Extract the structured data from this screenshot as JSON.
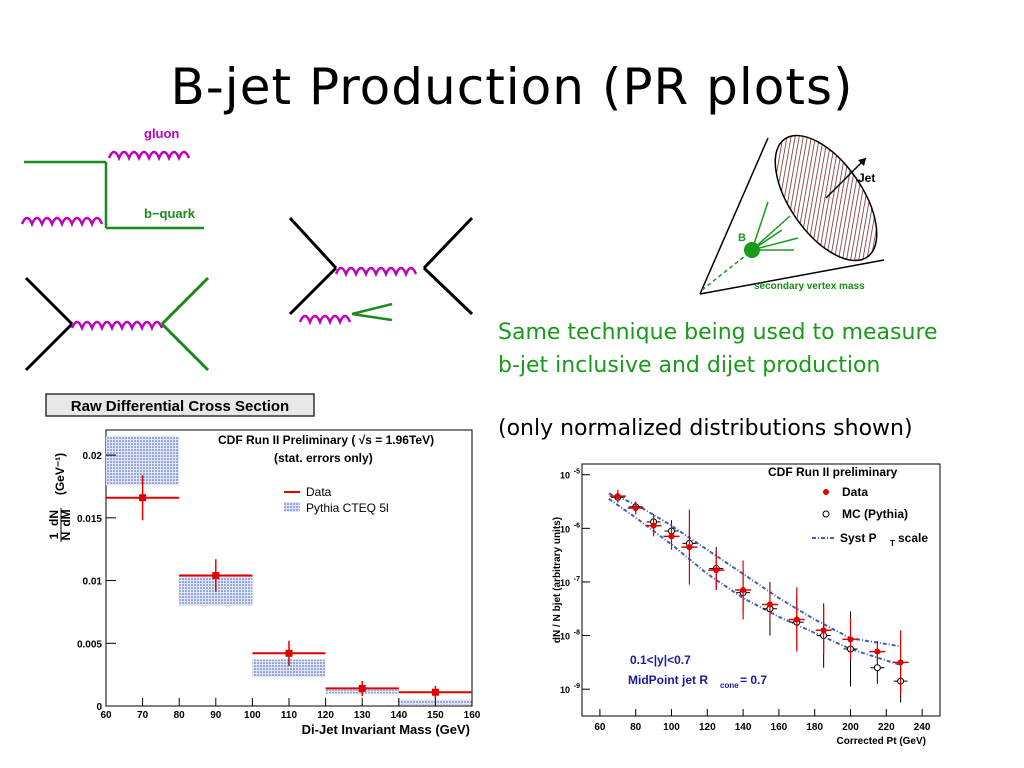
{
  "slide": {
    "title": "B-jet  Production (PR plots)",
    "caption_lines": [
      "Same technique being used to measure",
      "b-jet inclusive and dijet production"
    ],
    "caption_note": "(only normalized distributions shown)"
  },
  "diagrams": {
    "gluon_label": "gluon",
    "bquark_label": "b−quark",
    "cone": {
      "jet_label": "Jet",
      "b_label": "B",
      "sv_label": "secondary vertex mass"
    }
  },
  "colors": {
    "data_red": "#e00000",
    "mc_blue": "#4060c0",
    "green": "#1a8a1a",
    "magenta": "#c000c0"
  },
  "chart_data": [
    {
      "type": "bar",
      "title": "Raw Differential Cross Section",
      "annotation_lines": [
        "CDF Run II Preliminary ( √s = 1.96TeV)",
        "(stat. errors only)"
      ],
      "xlabel": "Di-Jet Invariant Mass (GeV)",
      "ylabel": "(GeV⁻¹)",
      "ylabel_fraction": {
        "num1": "1",
        "den1": "N",
        "num2": "dN",
        "den2": "dM"
      },
      "xlim": [
        60,
        160
      ],
      "ylim": [
        0,
        0.022
      ],
      "xticks": [
        60,
        70,
        80,
        90,
        100,
        110,
        120,
        130,
        140,
        150,
        160
      ],
      "yticks": [
        0,
        0.005,
        0.01,
        0.015,
        0.02
      ],
      "ytick_labels": [
        "0",
        "0.005",
        "0.01",
        "0.015",
        "0.02"
      ],
      "legend": [
        "Data",
        "Pythia CTEQ 5l"
      ],
      "legend_position": "top-right",
      "bins": [
        [
          60,
          80
        ],
        [
          80,
          100
        ],
        [
          100,
          120
        ],
        [
          120,
          140
        ],
        [
          140,
          160
        ]
      ],
      "series": [
        {
          "name": "Data",
          "x": [
            70,
            90,
            110,
            130,
            150
          ],
          "values": [
            0.0166,
            0.0104,
            0.0042,
            0.0014,
            0.0011
          ],
          "err": [
            0.0018,
            0.0013,
            0.001,
            0.0006,
            0.0005
          ]
        },
        {
          "name": "Pythia CTEQ 5l",
          "band_low": [
            0.0176,
            0.008,
            0.0023,
            0.001,
            0.0001
          ],
          "band_high": [
            0.0215,
            0.0105,
            0.0037,
            0.0013,
            0.0005
          ]
        }
      ]
    },
    {
      "type": "scatter",
      "title": "CDF Run II preliminary",
      "xlabel": "Corrected Pt (GeV)",
      "ylabel": "dN / N bjet (arbitrary units)",
      "xlim": [
        50,
        250
      ],
      "ylim_log10": [
        -9.5,
        -4.8
      ],
      "log_y": true,
      "xticks": [
        60,
        80,
        100,
        120,
        140,
        160,
        180,
        200,
        220,
        240
      ],
      "yticks_exp": [
        -5,
        -6,
        -7,
        -8,
        -9
      ],
      "legend": [
        "Data",
        "MC (Pythia)",
        "Syst P",
        "T",
        "scale"
      ],
      "legend_position": "top-right",
      "annotation_lines": [
        "0.1<|y|<0.7",
        "MidPoint jet R",
        "cone",
        " = 0.7"
      ],
      "series": [
        {
          "name": "Data",
          "x": [
            70,
            80,
            90,
            100,
            110,
            125,
            140,
            155,
            170,
            185,
            200,
            215,
            228
          ],
          "log_y": [
            -5.4,
            -5.62,
            -5.95,
            -6.15,
            -6.35,
            -6.78,
            -7.15,
            -7.42,
            -7.7,
            -7.9,
            -8.07,
            -8.3,
            -8.5
          ],
          "err_log": [
            0.12,
            0.12,
            0.2,
            0.25,
            0.7,
            0.35,
            0.55,
            0.3,
            0.6,
            0.45,
            0.4,
            0.2,
            0.6
          ]
        },
        {
          "name": "MC (Pythia)",
          "x": [
            70,
            80,
            90,
            100,
            110,
            125,
            140,
            155,
            170,
            185,
            200,
            215,
            228
          ],
          "log_y": [
            -5.42,
            -5.6,
            -5.88,
            -6.05,
            -6.28,
            -6.75,
            -7.2,
            -7.5,
            -7.75,
            -8.0,
            -8.25,
            -8.6,
            -8.85
          ],
          "err_log": [
            0.1,
            0.1,
            0.15,
            0.2,
            0.3,
            0.4,
            0.4,
            0.5,
            0.5,
            0.6,
            0.7,
            0.3,
            0.4
          ]
        },
        {
          "name": "Syst scale upper",
          "x": [
            65,
            80,
            100,
            120,
            140,
            160,
            180,
            200,
            228
          ],
          "log_y": [
            -5.35,
            -5.55,
            -5.95,
            -6.4,
            -6.85,
            -7.3,
            -7.7,
            -8.05,
            -8.2
          ]
        },
        {
          "name": "Syst scale lower",
          "x": [
            65,
            80,
            100,
            120,
            140,
            160,
            180,
            200,
            228
          ],
          "log_y": [
            -5.45,
            -5.8,
            -6.3,
            -6.85,
            -7.3,
            -7.65,
            -7.95,
            -8.25,
            -8.55
          ]
        }
      ]
    }
  ]
}
